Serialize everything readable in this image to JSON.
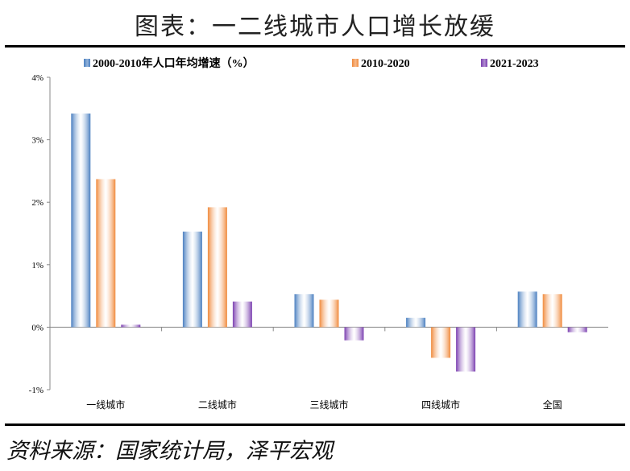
{
  "title": "图表：一二线城市人口增长放缓",
  "source": "资料来源：国家统计局，泽平宏观",
  "chart_data": {
    "type": "bar",
    "categories": [
      "一线城市",
      "二线城市",
      "三线城市",
      "四线城市",
      "全国"
    ],
    "series": [
      {
        "name": "2000-2010年人口年均增速（%）",
        "color": "#4a7fc0",
        "values": [
          3.42,
          1.53,
          0.53,
          0.15,
          0.57
        ]
      },
      {
        "name": "2010-2020",
        "color": "#f08a3c",
        "values": [
          2.37,
          1.92,
          0.44,
          -0.49,
          0.53
        ]
      },
      {
        "name": "2021-2023",
        "color": "#7b3fb0",
        "values": [
          0.04,
          0.41,
          -0.21,
          -0.71,
          -0.08
        ]
      }
    ],
    "ylim": [
      -1,
      4
    ],
    "yticks": [
      "-1%",
      "0%",
      "1%",
      "2%",
      "3%",
      "4%"
    ],
    "legend": "top",
    "grid": false
  }
}
